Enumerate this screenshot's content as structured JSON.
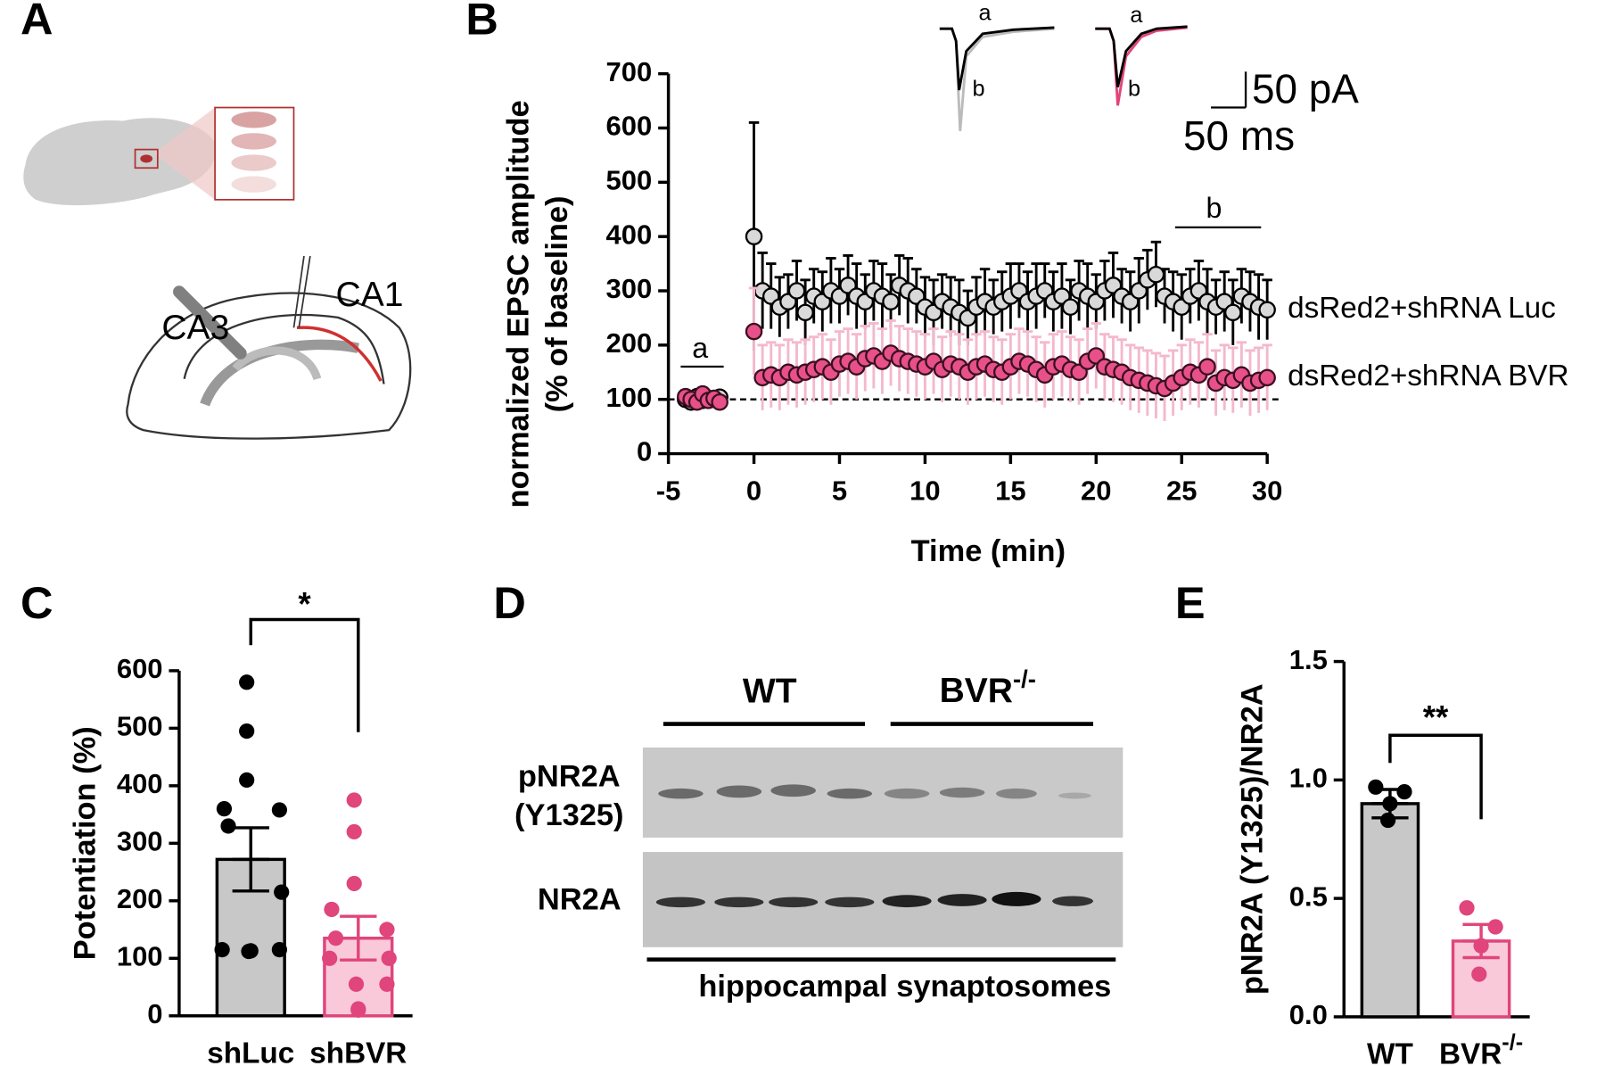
{
  "panels": {
    "labels": [
      "A",
      "B",
      "C",
      "D",
      "E"
    ]
  },
  "diagram": {
    "ca3": "CA3",
    "ca1": "CA1"
  },
  "inset": {
    "trace_labels": [
      "a",
      "b",
      "a",
      "b"
    ],
    "scale_y": "50 pA",
    "scale_x": "50 ms"
  },
  "blot": {
    "groups": [
      "WT",
      "BVR"
    ],
    "group_superscripts": [
      null,
      "-/-"
    ],
    "rows": [
      "pNR2A",
      "(Y1325)",
      "NR2A"
    ],
    "footer": "hippocampal synaptosomes"
  },
  "chart_data": [
    {
      "type": "scatter",
      "xlabel": "Time (min)",
      "ylabel": [
        "normalized EPSC amplitude",
        "(% of baseline)"
      ],
      "xlim": [
        -5,
        30
      ],
      "xticks": [
        -5,
        0,
        5,
        10,
        15,
        20,
        25,
        30
      ],
      "ylim": [
        0,
        700
      ],
      "yticks": [
        0,
        100,
        200,
        300,
        400,
        500,
        600,
        700
      ],
      "hline": 100,
      "annotations": [
        "a",
        "b"
      ],
      "x": [
        -4,
        -3.67,
        -3.33,
        -3,
        -2.67,
        -2.33,
        -2,
        0,
        0.5,
        1,
        1.5,
        2,
        2.5,
        3,
        3.5,
        4,
        4.5,
        5,
        5.5,
        6,
        6.5,
        7,
        7.5,
        8,
        8.5,
        9,
        9.5,
        10,
        10.5,
        11,
        11.5,
        12,
        12.5,
        13,
        13.5,
        14,
        14.5,
        15,
        15.5,
        16,
        16.5,
        17,
        17.5,
        18,
        18.5,
        19,
        19.5,
        20,
        20.5,
        21,
        21.5,
        22,
        22.5,
        23,
        23.5,
        24,
        24.5,
        25,
        25.5,
        26,
        26.5,
        27,
        27.5,
        28,
        28.5,
        29,
        29.5,
        30
      ],
      "series": [
        {
          "name": "dsRed2+shRNA Luc",
          "color": "#d9d9d9",
          "edge": "#000000",
          "error_color": "#000000",
          "label_color": "#000000",
          "values": [
            100,
            95,
            105,
            98,
            102,
            100,
            104,
            400,
            300,
            290,
            270,
            280,
            300,
            260,
            290,
            280,
            300,
            290,
            310,
            290,
            280,
            300,
            290,
            280,
            310,
            300,
            290,
            270,
            260,
            280,
            270,
            260,
            250,
            270,
            280,
            270,
            280,
            290,
            300,
            280,
            290,
            300,
            280,
            290,
            270,
            300,
            290,
            280,
            300,
            310,
            290,
            280,
            300,
            320,
            330,
            290,
            280,
            270,
            290,
            300,
            280,
            270,
            280,
            260,
            290,
            280,
            270,
            265
          ],
          "errors": [
            10,
            10,
            10,
            10,
            10,
            10,
            10,
            210,
            70,
            60,
            55,
            50,
            55,
            60,
            50,
            55,
            60,
            50,
            55,
            60,
            50,
            55,
            60,
            50,
            55,
            60,
            50,
            55,
            60,
            50,
            55,
            60,
            50,
            55,
            60,
            50,
            55,
            60,
            50,
            55,
            60,
            50,
            55,
            60,
            50,
            55,
            60,
            50,
            55,
            60,
            50,
            55,
            60,
            55,
            60,
            50,
            55,
            60,
            50,
            55,
            60,
            50,
            55,
            60,
            50,
            55,
            60,
            55
          ]
        },
        {
          "name": "dsRed2+shRNA BVR",
          "color": "#e8508a",
          "edge": "#3a1020",
          "error_color": "#f4b8cc",
          "label_color": "#e0457b",
          "values": [
            105,
            100,
            95,
            110,
            98,
            102,
            95,
            225,
            140,
            145,
            140,
            150,
            145,
            150,
            155,
            160,
            150,
            165,
            170,
            160,
            175,
            180,
            170,
            185,
            175,
            170,
            165,
            160,
            170,
            155,
            165,
            160,
            150,
            160,
            165,
            155,
            150,
            160,
            170,
            165,
            155,
            145,
            160,
            165,
            155,
            150,
            170,
            180,
            160,
            155,
            150,
            140,
            135,
            130,
            125,
            120,
            130,
            140,
            150,
            145,
            160,
            130,
            140,
            135,
            145,
            130,
            135,
            140
          ],
          "errors": [
            12,
            12,
            12,
            12,
            12,
            12,
            12,
            80,
            60,
            60,
            60,
            60,
            60,
            60,
            60,
            60,
            60,
            60,
            60,
            60,
            60,
            60,
            60,
            60,
            60,
            60,
            60,
            60,
            60,
            60,
            60,
            60,
            60,
            60,
            60,
            60,
            60,
            60,
            60,
            60,
            60,
            60,
            60,
            60,
            60,
            60,
            60,
            60,
            60,
            60,
            60,
            60,
            60,
            60,
            60,
            60,
            60,
            60,
            60,
            60,
            60,
            60,
            60,
            60,
            60,
            60,
            60,
            60
          ]
        }
      ]
    },
    {
      "type": "bar",
      "ylabel": "Potentiation (%)",
      "categories": [
        "shLuc",
        "shBVR"
      ],
      "category_superscripts": [
        null,
        null
      ],
      "values": [
        272,
        135
      ],
      "errors": [
        55,
        38
      ],
      "points": [
        [
          580,
          495,
          410,
          360,
          358,
          330,
          215,
          115,
          112,
          115,
          113
        ],
        [
          375,
          320,
          230,
          185,
          150,
          135,
          100,
          100,
          55,
          55,
          12,
          10
        ]
      ],
      "colors": [
        "#c8c8c8",
        "#f9c9da"
      ],
      "edge_colors": [
        "#000000",
        "#e0457b"
      ],
      "point_colors": [
        "#000000",
        "#e0457b"
      ],
      "significance": "*",
      "ylim": [
        0,
        600
      ],
      "yticks": [
        0,
        100,
        200,
        300,
        400,
        500,
        600
      ]
    },
    {
      "type": "bar",
      "ylabel": "pNR2A (Y1325)/NR2A",
      "categories": [
        "WT",
        "BVR"
      ],
      "category_superscripts": [
        null,
        "-/-"
      ],
      "values": [
        0.9,
        0.32
      ],
      "errors": [
        0.06,
        0.07
      ],
      "points": [
        [
          0.97,
          0.95,
          0.9,
          0.83
        ],
        [
          0.46,
          0.38,
          0.3,
          0.18
        ]
      ],
      "colors": [
        "#c8c8c8",
        "#f9c9da"
      ],
      "edge_colors": [
        "#000000",
        "#e0457b"
      ],
      "point_colors": [
        "#000000",
        "#e0457b"
      ],
      "significance": "**",
      "ylim": [
        0,
        1.5
      ],
      "yticks": [
        {
          "value": 0,
          "label": "0.0"
        },
        {
          "value": 0.5,
          "label": "0.5"
        },
        {
          "value": 1,
          "label": "1.0"
        },
        {
          "value": 1.5,
          "label": "1.5"
        }
      ]
    }
  ]
}
